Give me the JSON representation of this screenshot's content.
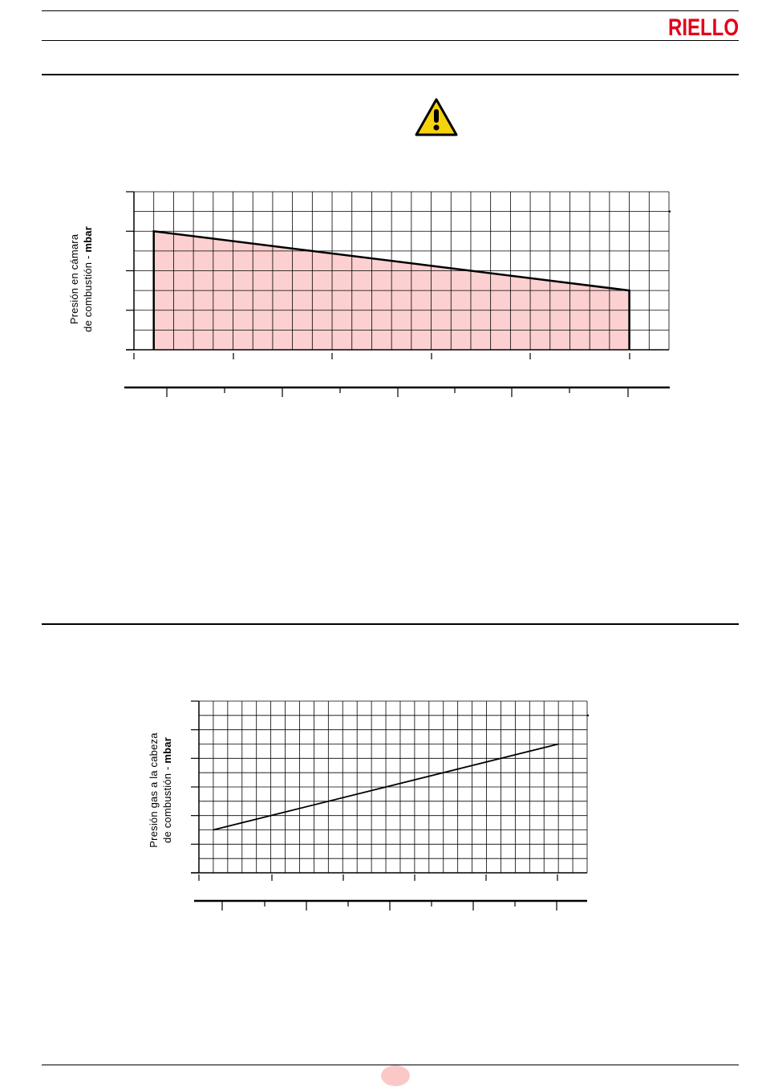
{
  "brand": {
    "name": "RIELLO",
    "color": "#e3001b"
  },
  "warning": {
    "icon": "warning-triangle-icon",
    "fill": "#f5d20c"
  },
  "charts": {
    "chamber": {
      "ylabel_line1": "Presión en cámara",
      "ylabel_line2_prefix": "de combustión - ",
      "ylabel_line2_unit": "mbar",
      "fill": "#fcd0d0"
    },
    "head": {
      "ylabel_line1": "Presión gas a la cabeza",
      "ylabel_line2_prefix": "de combustión - ",
      "ylabel_line2_unit": "mbar"
    }
  },
  "chart_data": [
    {
      "type": "area",
      "series": [
        {
          "x": [
            1,
            25
          ],
          "values": [
            6,
            3
          ]
        }
      ],
      "xlim": [
        0,
        27
      ],
      "ylim": [
        0,
        8
      ],
      "grid": true
    },
    {
      "type": "line",
      "series": [
        {
          "x": [
            1,
            25
          ],
          "values": [
            3,
            9
          ]
        }
      ],
      "xlim": [
        0,
        27
      ],
      "ylim": [
        0,
        12
      ],
      "grid": true
    }
  ],
  "page": {
    "badge_color": "#fbc8c8"
  }
}
